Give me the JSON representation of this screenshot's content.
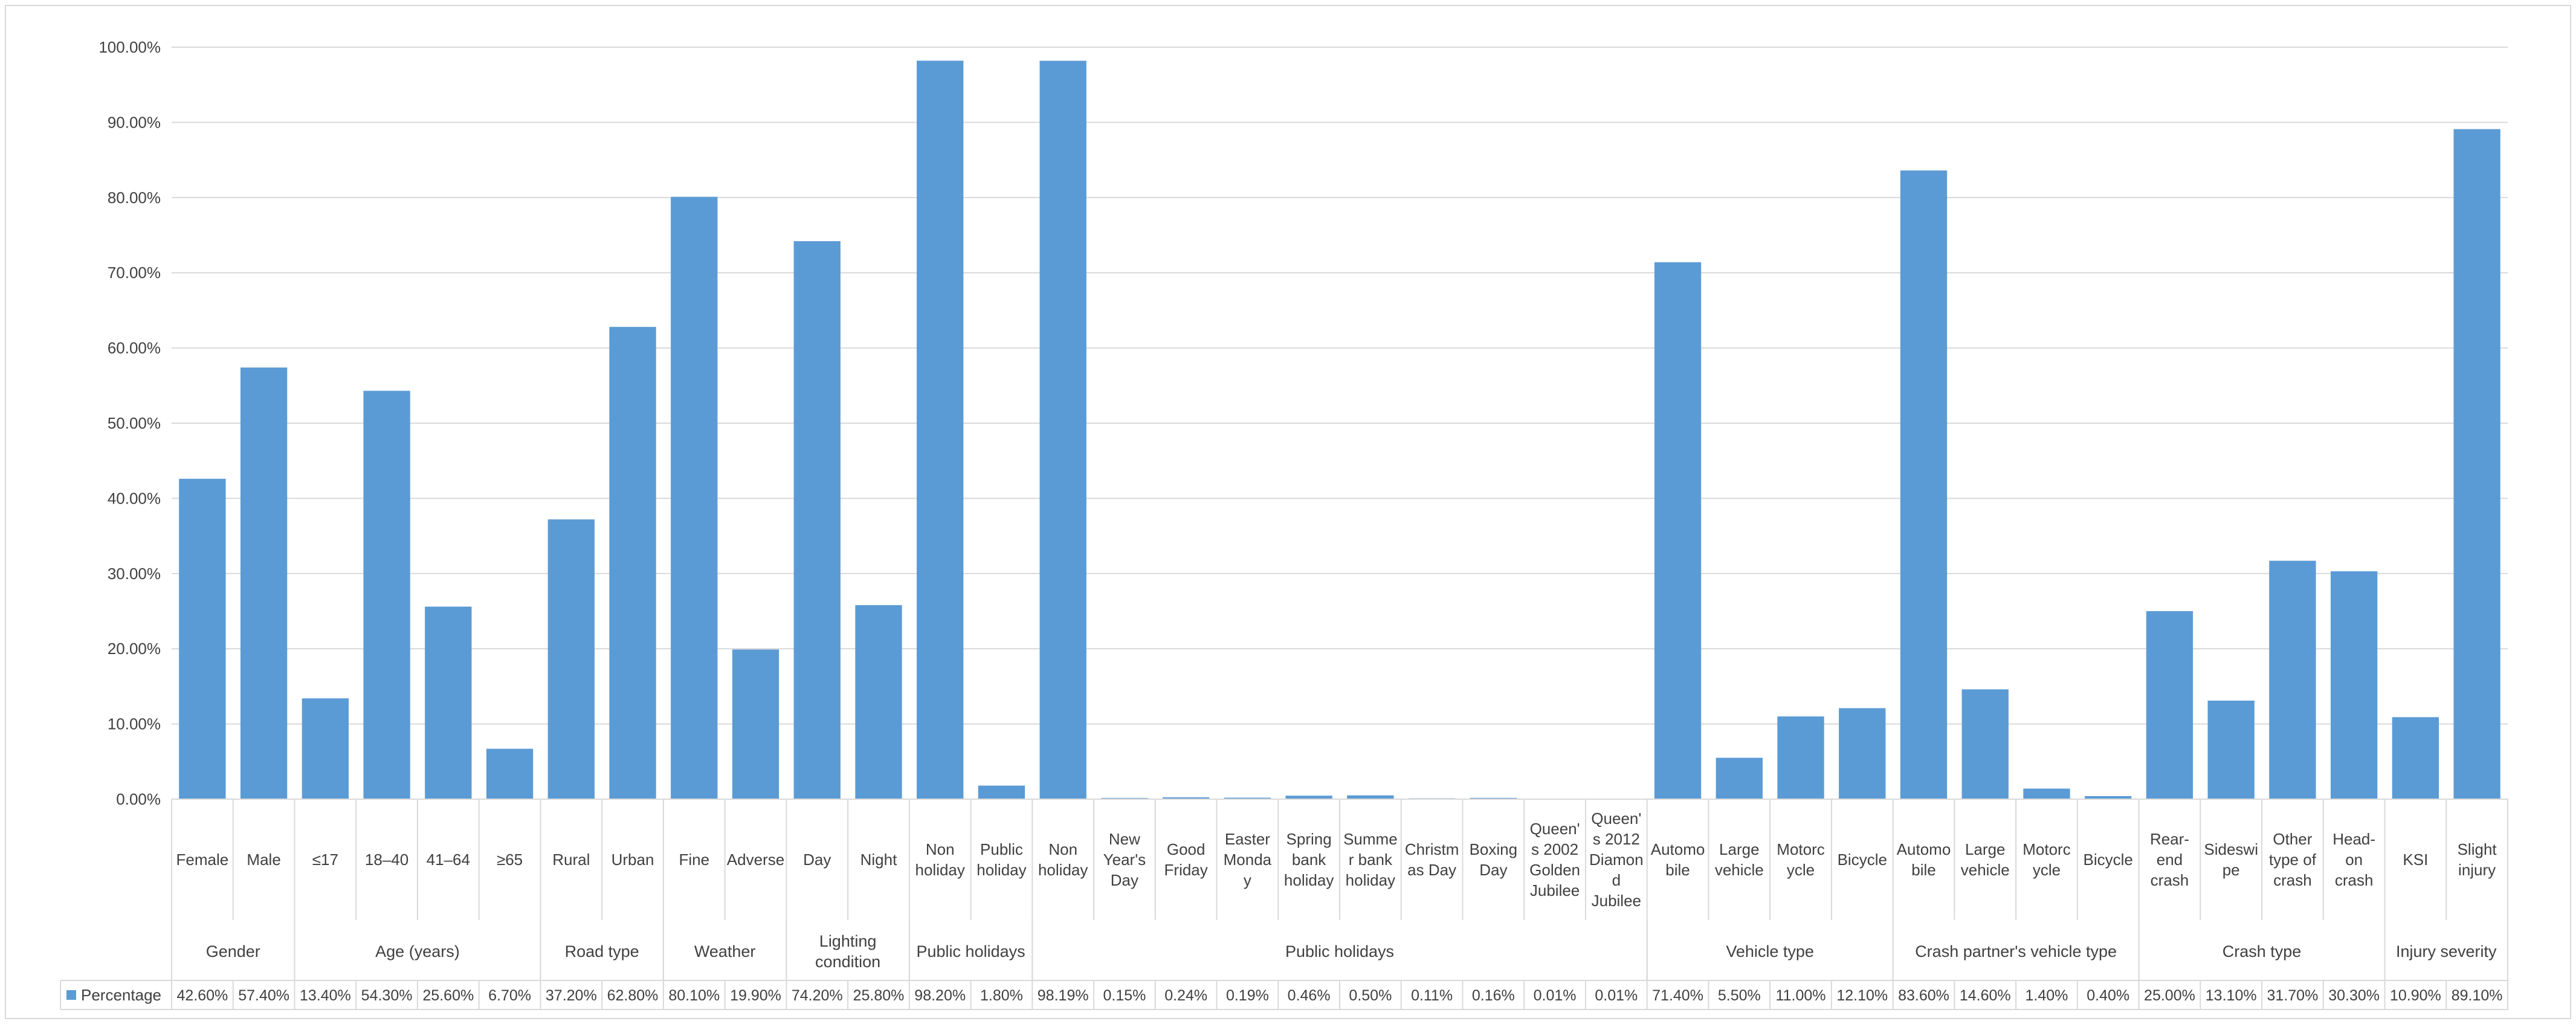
{
  "colors": {
    "bar": "#5b9bd5",
    "grid": "#d9d9d9",
    "text": "#404040"
  },
  "chart_data": {
    "type": "bar",
    "title": "",
    "xlabel": "",
    "ylabel": "",
    "ylim": [
      0,
      100
    ],
    "y_ticks": [
      "0.00%",
      "10.00%",
      "20.00%",
      "30.00%",
      "40.00%",
      "50.00%",
      "60.00%",
      "70.00%",
      "80.00%",
      "90.00%",
      "100.00%"
    ],
    "grid": true,
    "legend": "bottom-left",
    "series": [
      {
        "name": "Percentage",
        "values": [
          42.6,
          57.4,
          13.4,
          54.3,
          25.6,
          6.7,
          37.2,
          62.8,
          80.1,
          19.9,
          74.2,
          25.8,
          98.2,
          1.8,
          98.19,
          0.15,
          0.24,
          0.19,
          0.46,
          0.5,
          0.11,
          0.16,
          0.01,
          0.01,
          71.4,
          5.5,
          11.0,
          12.1,
          83.6,
          14.6,
          1.4,
          0.4,
          25.0,
          13.1,
          31.7,
          30.3,
          10.9,
          89.1
        ]
      }
    ],
    "categories": [
      [
        "Female"
      ],
      [
        "Male"
      ],
      [
        "≤17"
      ],
      [
        "18–40"
      ],
      [
        "41–64"
      ],
      [
        "≥65"
      ],
      [
        "Rural"
      ],
      [
        "Urban"
      ],
      [
        "Fine"
      ],
      [
        "Adverse"
      ],
      [
        "Day"
      ],
      [
        "Night"
      ],
      [
        "Non",
        "holiday"
      ],
      [
        "Public",
        "holiday"
      ],
      [
        "Non",
        "holiday"
      ],
      [
        "New",
        "Year's",
        "Day"
      ],
      [
        "Good",
        "Friday"
      ],
      [
        "Easter",
        "Monda",
        "y"
      ],
      [
        "Spring",
        "bank",
        "holiday"
      ],
      [
        "Summe",
        "r bank",
        "holiday"
      ],
      [
        "Christm",
        "as Day"
      ],
      [
        "Boxing",
        "Day"
      ],
      [
        "Queen'",
        "s 2002",
        "Golden",
        "Jubilee"
      ],
      [
        "Queen'",
        "s 2012",
        "Diamon",
        "d",
        "Jubilee"
      ],
      [
        "Automo",
        "bile"
      ],
      [
        "Large",
        "vehicle"
      ],
      [
        "Motorc",
        "ycle"
      ],
      [
        "Bicycle"
      ],
      [
        "Automo",
        "bile"
      ],
      [
        "Large",
        "vehicle"
      ],
      [
        "Motorc",
        "ycle"
      ],
      [
        "Bicycle"
      ],
      [
        "Rear-",
        "end",
        "crash"
      ],
      [
        "Sideswi",
        "pe"
      ],
      [
        "Other",
        "type of",
        "crash"
      ],
      [
        "Head-",
        "on",
        "crash"
      ],
      [
        "KSI"
      ],
      [
        "Slight",
        "injury"
      ]
    ],
    "groups": [
      {
        "label": [
          "Gender"
        ],
        "start": 0,
        "end": 1
      },
      {
        "label": [
          "Age (years)"
        ],
        "start": 2,
        "end": 5
      },
      {
        "label": [
          "Road type"
        ],
        "start": 6,
        "end": 7
      },
      {
        "label": [
          "Weather"
        ],
        "start": 8,
        "end": 9
      },
      {
        "label": [
          "Lighting",
          "condition"
        ],
        "start": 10,
        "end": 11
      },
      {
        "label": [
          "Public holidays"
        ],
        "start": 12,
        "end": 13
      },
      {
        "label": [
          "Public holidays"
        ],
        "start": 14,
        "end": 23
      },
      {
        "label": [
          "Vehicle type"
        ],
        "start": 24,
        "end": 27
      },
      {
        "label": [
          "Crash partner's vehicle type"
        ],
        "start": 28,
        "end": 31
      },
      {
        "label": [
          "Crash type"
        ],
        "start": 32,
        "end": 35
      },
      {
        "label": [
          "Injury severity"
        ],
        "start": 36,
        "end": 37
      }
    ],
    "table_values": [
      "42.60%",
      "57.40%",
      "13.40%",
      "54.30%",
      "25.60%",
      "6.70%",
      "37.20%",
      "62.80%",
      "80.10%",
      "19.90%",
      "74.20%",
      "25.80%",
      "98.20%",
      "1.80%",
      "98.19%",
      "0.15%",
      "0.24%",
      "0.19%",
      "0.46%",
      "0.50%",
      "0.11%",
      "0.16%",
      "0.01%",
      "0.01%",
      "71.40%",
      "5.50%",
      "11.00%",
      "12.10%",
      "83.60%",
      "14.60%",
      "1.40%",
      "0.40%",
      "25.00%",
      "13.10%",
      "31.70%",
      "30.30%",
      "10.90%",
      "89.10%"
    ]
  }
}
